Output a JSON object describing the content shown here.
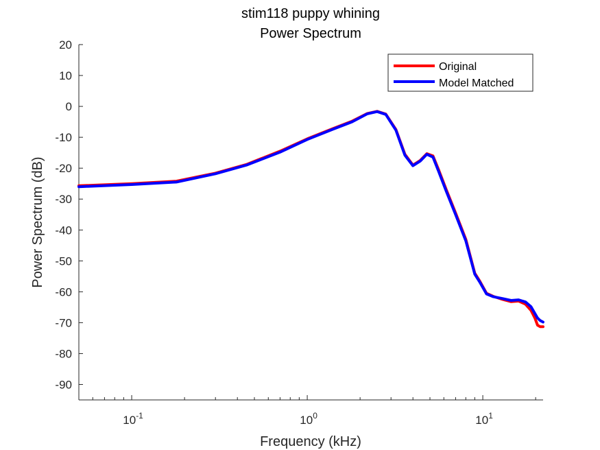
{
  "chart_data": {
    "type": "line",
    "title": [
      "stim118 puppy whining",
      "Power Spectrum"
    ],
    "xlabel": "Frequency (kHz)",
    "ylabel": "Power Spectrum (dB)",
    "xscale": "log",
    "xlim": [
      0.05,
      22.05
    ],
    "ylim": [
      -95,
      20
    ],
    "yticks": [
      20,
      10,
      0,
      -10,
      -20,
      -30,
      -40,
      -50,
      -60,
      -70,
      -80,
      -90
    ],
    "ytick_labels": [
      "20",
      "10",
      "0",
      "-10",
      "-20",
      "-30",
      "-40",
      "-50",
      "-60",
      "-70",
      "-80",
      "-90"
    ],
    "xticks": [
      {
        "value": 0.1,
        "base": "10",
        "exp": "-1"
      },
      {
        "value": 1,
        "base": "10",
        "exp": "0"
      },
      {
        "value": 10,
        "base": "10",
        "exp": "1"
      }
    ],
    "grid": false,
    "legend_position": "top-right",
    "series": [
      {
        "name": "Original",
        "color": "#ff0000",
        "x": [
          0.05,
          0.1,
          0.18,
          0.3,
          0.45,
          0.7,
          1.0,
          1.4,
          1.8,
          2.2,
          2.5,
          2.8,
          3.2,
          3.6,
          4.0,
          4.4,
          4.8,
          5.2,
          5.6,
          6.2,
          7.0,
          8.0,
          9.0,
          9.6,
          10.5,
          11.5,
          13.0,
          14.5,
          16.0,
          17.5,
          18.8,
          19.8,
          20.5,
          21.2,
          22.05
        ],
        "y": [
          -25.7,
          -25.0,
          -24.2,
          -21.6,
          -18.8,
          -14.5,
          -10.5,
          -7.2,
          -4.8,
          -2.3,
          -1.6,
          -2.5,
          -7.5,
          -15.5,
          -19.0,
          -17.5,
          -15.3,
          -16.0,
          -20.5,
          -27.0,
          -34.5,
          -43.0,
          -54.0,
          -56.5,
          -60.5,
          -61.5,
          -62.5,
          -63.2,
          -63.0,
          -64.0,
          -66.0,
          -68.5,
          -70.8,
          -71.3,
          -71.3
        ]
      },
      {
        "name": "Model Matched",
        "color": "#0000ff",
        "x": [
          0.05,
          0.1,
          0.18,
          0.3,
          0.45,
          0.7,
          1.0,
          1.4,
          1.8,
          2.2,
          2.5,
          2.8,
          3.2,
          3.6,
          4.0,
          4.4,
          4.8,
          5.2,
          5.6,
          6.2,
          7.0,
          8.0,
          9.0,
          9.6,
          10.5,
          11.5,
          13.0,
          14.5,
          16.0,
          17.5,
          18.8,
          19.8,
          20.5,
          21.2,
          22.05
        ],
        "y": [
          -26.0,
          -25.3,
          -24.5,
          -21.8,
          -19.0,
          -14.8,
          -10.7,
          -7.4,
          -5.0,
          -2.4,
          -1.7,
          -2.6,
          -7.7,
          -15.8,
          -19.2,
          -17.7,
          -15.5,
          -16.4,
          -21.0,
          -27.5,
          -35.0,
          -43.5,
          -54.3,
          -56.8,
          -60.7,
          -61.6,
          -62.2,
          -62.8,
          -62.6,
          -63.3,
          -64.8,
          -67.0,
          -68.5,
          -69.3,
          -69.8
        ]
      }
    ]
  }
}
